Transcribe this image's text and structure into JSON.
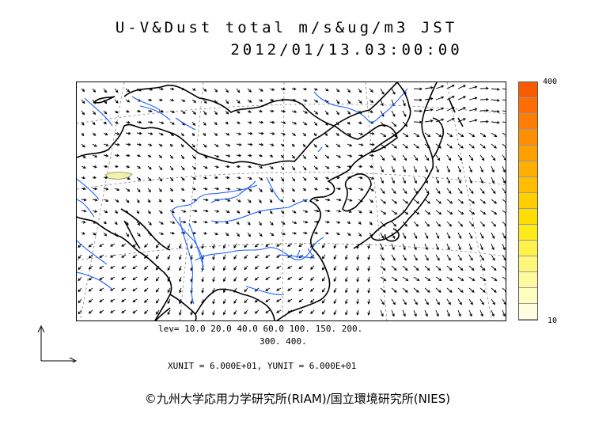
{
  "header": {
    "title_line1": "U-V&Dust total m/s&ug/m3 JST",
    "title_line2": "2012/01/13.03:00:00"
  },
  "legend": {
    "levels_line1": "lev= 10.0 20.0 40.0 60.0 100. 150. 200.",
    "levels_line2": "300. 400.",
    "units_text": "XUNIT = 6.000E+01, YUNIT = 6.000E+01",
    "colorbar_max": "400",
    "colorbar_min": "10",
    "colors": [
      "#fffde0",
      "#fffcc0",
      "#fffaa0",
      "#fff77a",
      "#fff24a",
      "#ffeb1a",
      "#ffdd00",
      "#ffcf00",
      "#ffbf00",
      "#ffaf00",
      "#ff9f00",
      "#ff8e00",
      "#ff7d00",
      "#ff6c00",
      "#fa5a00"
    ]
  },
  "map": {
    "coast_color": "#000000",
    "river_color": "#1d5fff",
    "arrow_color": "#000000",
    "dust_patch_color": "#f4f0b0"
  },
  "footer": {
    "copyright": "©九州大学応用力学研究所(RIAM)/国立環境研究所(NIES)"
  }
}
